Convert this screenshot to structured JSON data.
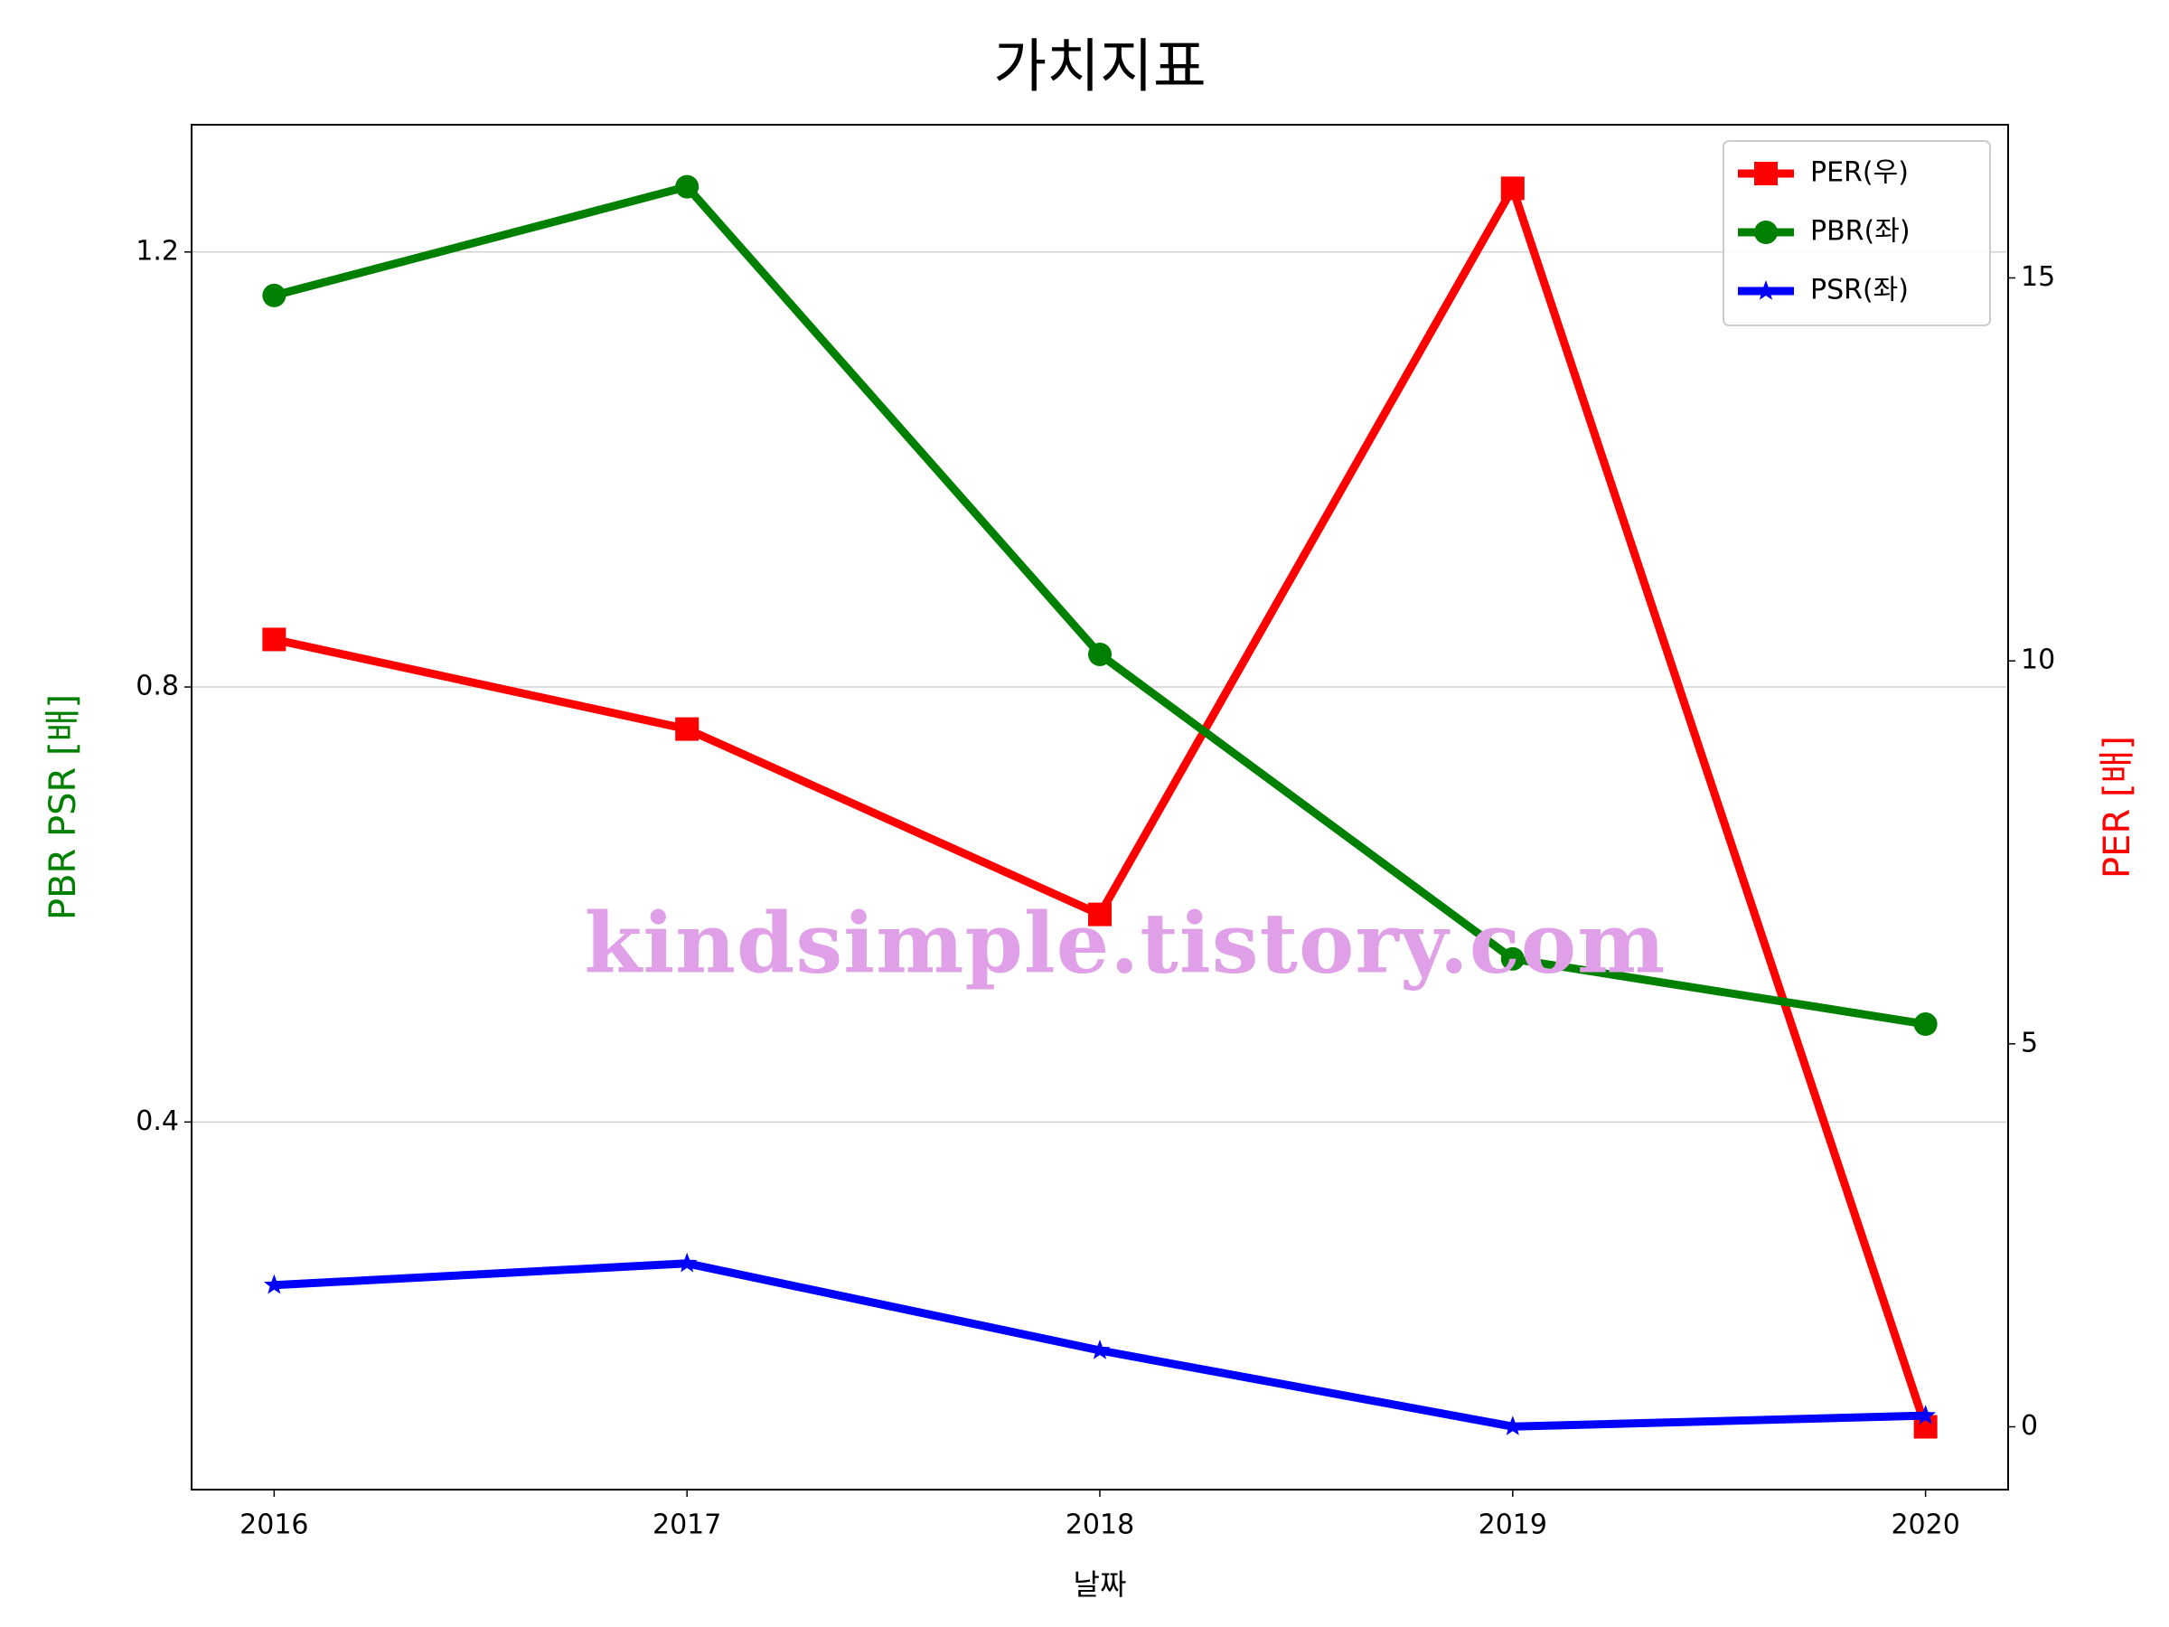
{
  "chart_data": {
    "type": "line",
    "title": "가치지표",
    "x_label": "날짜",
    "y_label": "PBR PSR [배]",
    "y2_label": "PER [배]",
    "watermark": "kindsimple.tistory.com",
    "x": [
      2016,
      2017,
      2018,
      2019,
      2020
    ],
    "xlim": [
      2015.8,
      2020.2
    ],
    "xticks": [
      2016,
      2017,
      2018,
      2019,
      2020
    ],
    "ylim": [
      0.062,
      1.317
    ],
    "yticks": [
      0.4,
      0.8,
      1.2
    ],
    "y2lim": [
      -0.82,
      17.0
    ],
    "y2ticks": [
      0,
      5,
      10,
      15
    ],
    "grid": true,
    "legend": "upper right",
    "series": [
      {
        "name": "PER(우)",
        "color": "#ff0000",
        "marker": "square",
        "axis": "y2",
        "values": [
          10.28,
          9.11,
          6.69,
          16.17,
          0
        ]
      },
      {
        "name": "PBR(좌)",
        "color": "#008000",
        "marker": "circle",
        "values": [
          1.16,
          1.26,
          0.83,
          0.55,
          0.49
        ]
      },
      {
        "name": "PSR(좌)",
        "color": "#0000ff",
        "marker": "star",
        "values": [
          0.25,
          0.27,
          0.19,
          0.12,
          0.13
        ]
      }
    ]
  }
}
